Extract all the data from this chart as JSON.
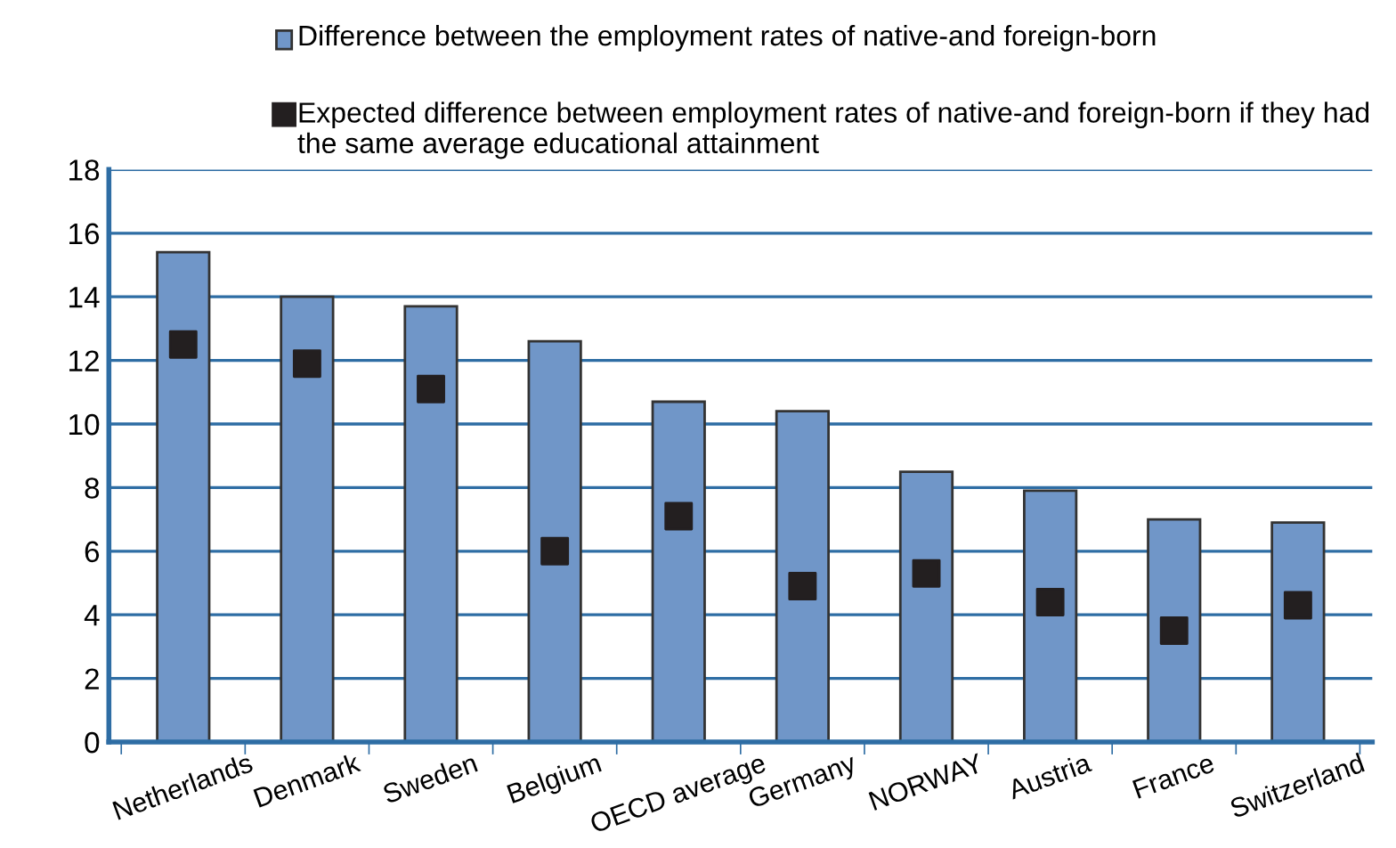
{
  "chart_data": {
    "type": "bar",
    "categories": [
      "Netherlands",
      "Denmark",
      "Sweden",
      "Belgium",
      "OECD average",
      "Germany",
      "NORWAY",
      "Austria",
      "France",
      "Switzerland"
    ],
    "series": [
      {
        "name": "Difference between the employment rates of native-and foreign-born",
        "color": "#7096c8",
        "values": [
          15.4,
          14.0,
          13.7,
          12.6,
          10.7,
          10.4,
          8.5,
          7.9,
          7.0,
          6.9
        ]
      },
      {
        "name": "Expected difference between employment rates of native-and foreign-born if they had the same average educational attainment",
        "type": "scatter",
        "color": "#231f20",
        "marker": "square",
        "x": [
          "Netherlands",
          "Denmark",
          "Sweden",
          "Belgium",
          "OECD average",
          "Germany",
          "NORWAY",
          "Austria",
          "France",
          "Switzerland"
        ],
        "values": [
          12.5,
          11.9,
          11.1,
          6.0,
          7.1,
          4.9,
          5.3,
          4.4,
          3.5,
          4.3
        ]
      }
    ],
    "ylim": [
      0,
      18
    ],
    "yticks": [
      0,
      2,
      4,
      6,
      8,
      10,
      12,
      14,
      16,
      18
    ],
    "grid": "y",
    "legend": "top"
  }
}
